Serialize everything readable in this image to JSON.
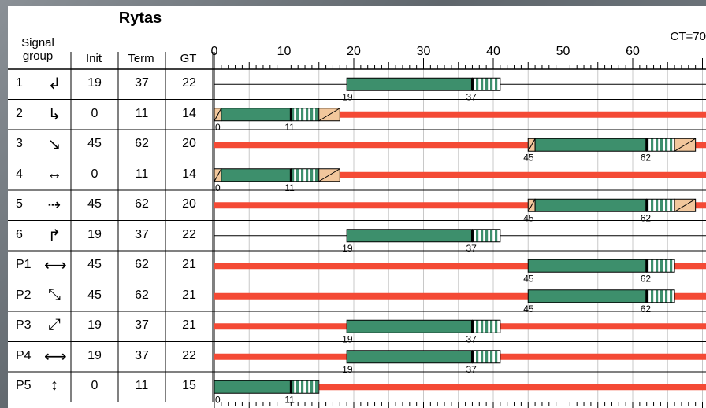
{
  "title": "Rytas",
  "cycle_label": "CT=70",
  "headers": {
    "signal_line1": "Signal",
    "signal_line2": "group",
    "init": "Init",
    "term": "Term",
    "gt": "GT"
  },
  "chart_data": {
    "type": "gantt",
    "cycle": 70,
    "x_ticks": [
      0,
      10,
      20,
      30,
      40,
      50,
      60
    ],
    "xlim": [
      0,
      70
    ],
    "grid": true,
    "colors": {
      "green": "#3d8f6c",
      "red": "#f44a35",
      "amber": "#f2c79c",
      "line": "#000000"
    },
    "rows": [
      {
        "group": "1",
        "icon": "turn-left-arrow-icon",
        "init": 19,
        "term": 37,
        "gt": 22,
        "red_bar": false,
        "amber": false,
        "label_start": "19",
        "label_end": "37"
      },
      {
        "group": "2",
        "icon": "down-right-arrow-icon",
        "init": 0,
        "term": 11,
        "gt": 14,
        "red_bar": true,
        "amber": true,
        "label_start": "0",
        "label_end": "11"
      },
      {
        "group": "3",
        "icon": "diagonal-split-arrow-icon",
        "init": 45,
        "term": 62,
        "gt": 20,
        "red_bar": true,
        "amber": true,
        "label_start": "45",
        "label_end": "62"
      },
      {
        "group": "4",
        "icon": "left-right-down-arrow-icon",
        "init": 0,
        "term": 11,
        "gt": 14,
        "red_bar": true,
        "amber": true,
        "label_start": "0",
        "label_end": "11"
      },
      {
        "group": "5",
        "icon": "right-down-arrow-icon",
        "init": 45,
        "term": 62,
        "gt": 20,
        "red_bar": true,
        "amber": true,
        "label_start": "45",
        "label_end": "62"
      },
      {
        "group": "6",
        "icon": "turn-up-arrow-icon",
        "init": 19,
        "term": 37,
        "gt": 22,
        "red_bar": false,
        "amber": false,
        "label_start": "19",
        "label_end": "37"
      },
      {
        "group": "P1",
        "icon": "double-horizontal-arrow-icon",
        "init": 45,
        "term": 62,
        "gt": 21,
        "red_bar": true,
        "amber": false,
        "label_start": "45",
        "label_end": "62"
      },
      {
        "group": "P2",
        "icon": "double-diagonal-arrow-icon",
        "init": 45,
        "term": 62,
        "gt": 21,
        "red_bar": true,
        "amber": false,
        "label_start": "45",
        "label_end": "62"
      },
      {
        "group": "P3",
        "icon": "double-diagonal-up-arrow-icon",
        "init": 19,
        "term": 37,
        "gt": 21,
        "red_bar": true,
        "amber": false,
        "label_start": "19",
        "label_end": "37"
      },
      {
        "group": "P4",
        "icon": "double-horizontal-arrow-icon",
        "init": 19,
        "term": 37,
        "gt": 22,
        "red_bar": true,
        "amber": false,
        "label_start": "19",
        "label_end": "37"
      },
      {
        "group": "P5",
        "icon": "double-vertical-arrow-icon",
        "init": 0,
        "term": 11,
        "gt": 15,
        "red_bar": true,
        "amber": false,
        "label_start": "0",
        "label_end": "11"
      }
    ]
  }
}
